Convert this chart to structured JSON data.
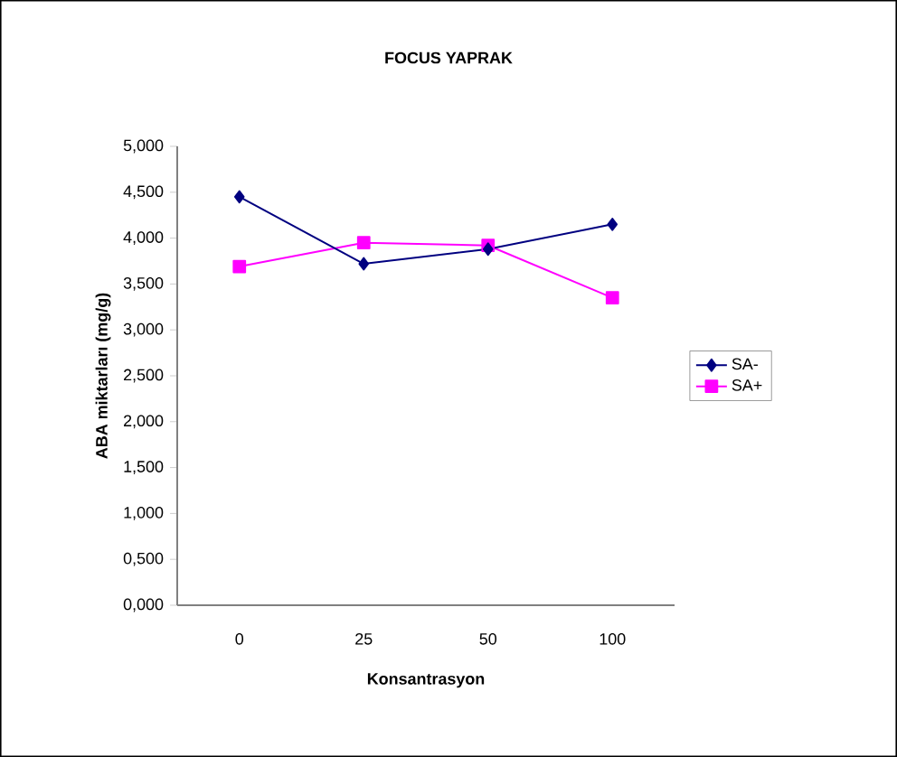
{
  "chart_data": {
    "type": "line",
    "title": "FOCUS YAPRAK",
    "xlabel": "Konsantrasyon",
    "ylabel": "ABA miktarları (mg/g)",
    "categories": [
      "0",
      "25",
      "50",
      "100"
    ],
    "series": [
      {
        "name": "SA-",
        "color": "#000080",
        "marker": "diamond",
        "values": [
          4.45,
          3.72,
          3.88,
          4.15
        ]
      },
      {
        "name": "SA+",
        "color": "#ff00ff",
        "marker": "square",
        "values": [
          3.69,
          3.95,
          3.92,
          3.35
        ]
      }
    ],
    "ylim": [
      0,
      5
    ],
    "yticks": [
      {
        "value": 0,
        "label": "0,000"
      },
      {
        "value": 0.5,
        "label": "0,500"
      },
      {
        "value": 1,
        "label": "1,000"
      },
      {
        "value": 1.5,
        "label": "1,500"
      },
      {
        "value": 2,
        "label": "2,000"
      },
      {
        "value": 2.5,
        "label": "2,500"
      },
      {
        "value": 3,
        "label": "3,000"
      },
      {
        "value": 3.5,
        "label": "3,500"
      },
      {
        "value": 4,
        "label": "4,000"
      },
      {
        "value": 4.5,
        "label": "4,500"
      },
      {
        "value": 5,
        "label": "5,000"
      }
    ],
    "grid": false,
    "legend": "right",
    "line_style": "solid"
  }
}
